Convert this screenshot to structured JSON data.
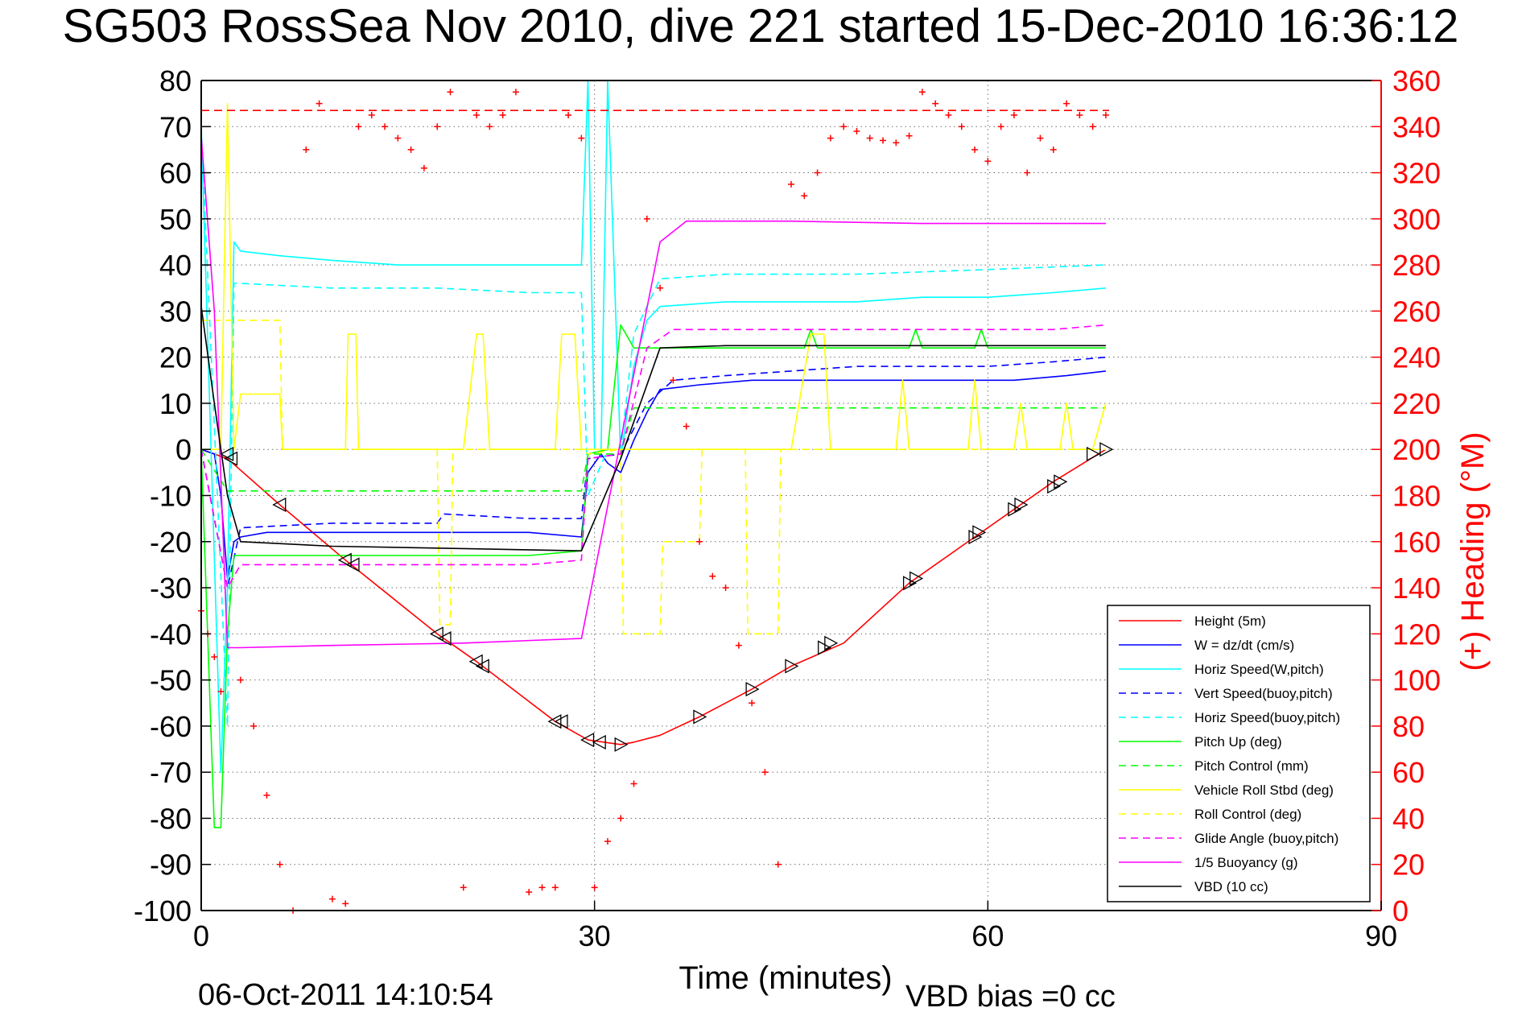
{
  "title": "SG503 RossSea Nov 2010, dive 221 started 15-Dec-2010 16:36:12",
  "footer": {
    "timestamp": "06-Oct-2011 14:10:54",
    "vbd_bias": "VBD bias =0 cc"
  },
  "colors": {
    "height": "#ff0000",
    "w": "#0000ff",
    "cyan": "#00ffff",
    "green": "#00ff00",
    "yellow": "#ffff00",
    "magenta": "#ff00ff",
    "vbd": "#000000",
    "heading": "#ff0000"
  },
  "chart_data": {
    "type": "line",
    "title": "SG503 RossSea Nov 2010, dive 221 started 15-Dec-2010 16:36:12",
    "xlabel": "Time (minutes)",
    "ylabel": "",
    "y2label": "(+) Heading (°M)",
    "xlim": [
      0,
      90
    ],
    "ylim": [
      -100,
      80
    ],
    "y2lim": [
      0,
      360
    ],
    "xticks": [
      "0",
      "30",
      "60",
      "90"
    ],
    "yticks": [
      "80",
      "70",
      "60",
      "50",
      "40",
      "30",
      "20",
      "10",
      "0",
      "-10",
      "-20",
      "-30",
      "-40",
      "-50",
      "-60",
      "-70",
      "-80",
      "-90",
      "-100"
    ],
    "y2ticks": [
      "360",
      "340",
      "320",
      "300",
      "280",
      "260",
      "240",
      "220",
      "200",
      "180",
      "160",
      "140",
      "120",
      "100",
      "80",
      "60",
      "40",
      "20",
      "0"
    ],
    "grid": true,
    "legend_position": "bottom-right",
    "series": [
      {
        "name": "Height (5m)",
        "color": "#ff0000",
        "style": "solid",
        "x": [
          0,
          2,
          6,
          11,
          18,
          21,
          27,
          29.5,
          32,
          33,
          35,
          38,
          42,
          45,
          49,
          54,
          59,
          62,
          65,
          69
        ],
        "y": [
          0,
          -2,
          -12,
          -24,
          -40,
          -46,
          -59,
          -63,
          -64,
          -63.5,
          -62,
          -58,
          -52,
          -47,
          -42,
          -29,
          -19,
          -13,
          -7,
          0
        ]
      },
      {
        "name": "W = dz/dt (cm/s)",
        "color": "#0000ff",
        "style": "solid",
        "x": [
          0,
          1,
          1.5,
          2,
          2.5,
          3,
          5,
          10,
          15,
          18,
          22,
          25,
          29,
          29.5,
          30.5,
          31,
          32,
          33,
          34,
          35,
          38,
          42,
          47,
          55,
          62,
          66,
          69
        ],
        "y": [
          0,
          -1,
          -10,
          -28,
          -20,
          -19,
          -18,
          -18,
          -18,
          -18,
          -18,
          -18,
          -19,
          -5,
          -1,
          -3,
          -5,
          2,
          8,
          13,
          14,
          15,
          15,
          15,
          15,
          16,
          17
        ]
      },
      {
        "name": "Horiz Speed(W,pitch)",
        "color": "#00ffff",
        "style": "solid",
        "x": [
          0,
          1.5,
          2,
          2.5,
          3,
          6,
          10,
          15,
          20,
          25,
          29,
          29.5,
          30,
          30.5,
          31,
          32,
          33,
          34,
          35,
          40,
          45,
          50,
          55,
          60,
          65,
          69
        ],
        "y": [
          70,
          -70,
          -30,
          45,
          43,
          42,
          41,
          40,
          40,
          40,
          40,
          80,
          0,
          0,
          80,
          -2,
          18,
          28,
          31,
          32,
          32,
          32,
          33,
          33,
          34,
          35
        ]
      },
      {
        "name": "Vert Speed(buoy,pitch)",
        "color": "#0000ff",
        "style": "dashed",
        "x": [
          0,
          2,
          3,
          10,
          18,
          18.5,
          25,
          29,
          29.5,
          32,
          34,
          36,
          40,
          45,
          50,
          55,
          60,
          65,
          69
        ],
        "y": [
          0,
          -30,
          -17,
          -16,
          -16,
          -14,
          -15,
          -15,
          -2,
          -1,
          10,
          15,
          16,
          17,
          18,
          18,
          18,
          19,
          20
        ]
      },
      {
        "name": "Horiz Speed(buoy,pitch)",
        "color": "#00ffff",
        "style": "dashed",
        "x": [
          0,
          2,
          2.5,
          3,
          10,
          18,
          25,
          29,
          29.5,
          31,
          32,
          33,
          35,
          40,
          50,
          60,
          69
        ],
        "y": [
          70,
          -60,
          36,
          36,
          35,
          35,
          34,
          34,
          -10,
          0,
          0,
          25,
          37,
          38,
          38,
          39,
          40
        ]
      },
      {
        "name": "Pitch Up (deg)",
        "color": "#00ff00",
        "style": "solid",
        "x": [
          0,
          1,
          1.5,
          2,
          2.5,
          3,
          10,
          18,
          25,
          29,
          29.5,
          31,
          32,
          33,
          35,
          40,
          46,
          46.5,
          47,
          54,
          54.5,
          55,
          59,
          59.5,
          60,
          65,
          69
        ],
        "y": [
          0,
          -82,
          -82,
          -40,
          -23,
          -23,
          -23,
          -23,
          -23,
          -22,
          -1,
          0,
          27,
          22,
          22,
          22,
          22,
          26,
          22,
          22,
          26,
          22,
          22,
          26,
          22,
          22,
          22
        ]
      },
      {
        "name": "Pitch Control (mm)",
        "color": "#00ff00",
        "style": "dashed",
        "x": [
          0,
          2,
          3,
          29,
          29.5,
          32,
          33,
          69
        ],
        "y": [
          0,
          -9,
          -9,
          -9,
          -1,
          -1,
          9,
          9
        ]
      },
      {
        "name": "Vehicle Roll Stbd (deg)",
        "color": "#ffff00",
        "style": "solid",
        "x": [
          0,
          1.5,
          2,
          2.5,
          3,
          5,
          6,
          6.2,
          11,
          11.2,
          11.5,
          11.8,
          12,
          20,
          21,
          21.5,
          22,
          27,
          27.5,
          28,
          28.5,
          29,
          31,
          32,
          45,
          46.5,
          47,
          47.5,
          48,
          53,
          53.5,
          54,
          58.5,
          59,
          59.5,
          62,
          62.5,
          63,
          65.5,
          66,
          66.5,
          68,
          69
        ],
        "y": [
          0,
          0,
          75,
          0,
          12,
          12,
          12,
          0,
          0,
          25,
          25,
          25,
          0,
          0,
          25,
          25,
          0,
          0,
          25,
          25,
          25,
          0,
          0,
          0,
          0,
          25,
          25,
          25,
          0,
          0,
          15,
          0,
          0,
          15,
          0,
          0,
          10,
          0,
          0,
          10,
          0,
          0,
          10
        ]
      },
      {
        "name": "Roll Control (deg)",
        "color": "#ffff00",
        "style": "dashed",
        "x": [
          0,
          2,
          2.2,
          6,
          6.2,
          18,
          18.2,
          19,
          19.2,
          29,
          29.5,
          32,
          32.2,
          35,
          35.2,
          38,
          38.2,
          41.5,
          41.7,
          44,
          44.2,
          69
        ],
        "y": [
          28,
          28,
          28,
          28,
          0,
          0,
          -38,
          -38,
          0,
          0,
          -1,
          0,
          -40,
          -40,
          -20,
          -20,
          0,
          0,
          -40,
          -40,
          0,
          0
        ]
      },
      {
        "name": "Glide Angle (buoy,pitch)",
        "color": "#ff00ff",
        "style": "dashed",
        "x": [
          0,
          2,
          3,
          10,
          18,
          25,
          29,
          29.5,
          32,
          34,
          36,
          45,
          55,
          60,
          65,
          69
        ],
        "y": [
          0,
          -30,
          -25,
          -25,
          -25,
          -25,
          -24,
          -2,
          -1,
          22,
          26,
          26,
          26,
          26,
          26,
          27
        ]
      },
      {
        "name": "1/5 Buoyancy (g)",
        "color": "#ff00ff",
        "style": "solid",
        "x": [
          0,
          1,
          2,
          3,
          10,
          20,
          29,
          35,
          37,
          45,
          55,
          69
        ],
        "y": [
          68,
          30,
          -43,
          -43,
          -42.5,
          -42,
          -41,
          45,
          49.5,
          49.5,
          49,
          49
        ]
      },
      {
        "name": "VBD (10 cc)",
        "color": "#000000",
        "style": "solid",
        "x": [
          0,
          1,
          2,
          3,
          10,
          20,
          29,
          32,
          35,
          40,
          50,
          69
        ],
        "y": [
          31,
          10,
          -10,
          -20,
          -21,
          -21.5,
          -22,
          -2,
          22,
          22.5,
          22.5,
          22.5
        ]
      }
    ],
    "heading": {
      "name": "(+) Heading",
      "color": "#ff0000",
      "marker": "+",
      "axis": "right",
      "x": [
        0,
        0.5,
        1,
        1.5,
        3,
        4,
        5,
        6,
        7,
        8,
        9,
        10,
        11,
        12,
        13,
        14,
        15,
        16,
        17,
        18,
        19,
        20,
        21,
        22,
        23,
        24,
        25,
        26,
        27,
        28,
        29,
        30,
        31,
        32,
        33,
        34,
        35,
        36,
        37,
        38,
        39,
        40,
        41,
        42,
        43,
        44,
        45,
        46,
        47,
        48,
        49,
        50,
        51,
        52,
        53,
        54,
        55,
        56,
        57,
        58,
        59,
        60,
        61,
        62,
        63,
        64,
        65,
        66,
        67,
        68,
        69
      ],
      "y": [
        130,
        120,
        110,
        95,
        100,
        80,
        50,
        20,
        0,
        330,
        350,
        5,
        3,
        340,
        345,
        340,
        335,
        330,
        322,
        340,
        355,
        10,
        345,
        340,
        345,
        355,
        8,
        10,
        10,
        345,
        335,
        10,
        30,
        40,
        55,
        300,
        270,
        230,
        210,
        160,
        145,
        140,
        115,
        90,
        60,
        20,
        315,
        310,
        320,
        335,
        340,
        338,
        335,
        334,
        333,
        336,
        355,
        350,
        345,
        340,
        330,
        325,
        340,
        345,
        320,
        335,
        330,
        350,
        345,
        340,
        345
      ]
    },
    "height_markers": {
      "x": [
        2,
        2.3,
        6,
        11,
        11.6,
        18,
        18.6,
        21,
        21.5,
        27,
        27.5,
        29.5,
        30.4,
        32,
        38,
        42,
        45,
        47.5,
        48,
        54,
        54.5,
        59,
        59.3,
        62,
        62.5,
        65,
        65.5,
        68,
        69
      ],
      "y": [
        -1,
        -2,
        -12,
        -24,
        -25,
        -40,
        -41,
        -46,
        -47,
        -59,
        -59,
        -63,
        -63.5,
        -64,
        -58,
        -52,
        -47,
        -43,
        -42,
        -29,
        -28,
        -19,
        -18,
        -13,
        -12,
        -8,
        -7,
        -1,
        0
      ]
    },
    "heading_ref_line": 347
  }
}
